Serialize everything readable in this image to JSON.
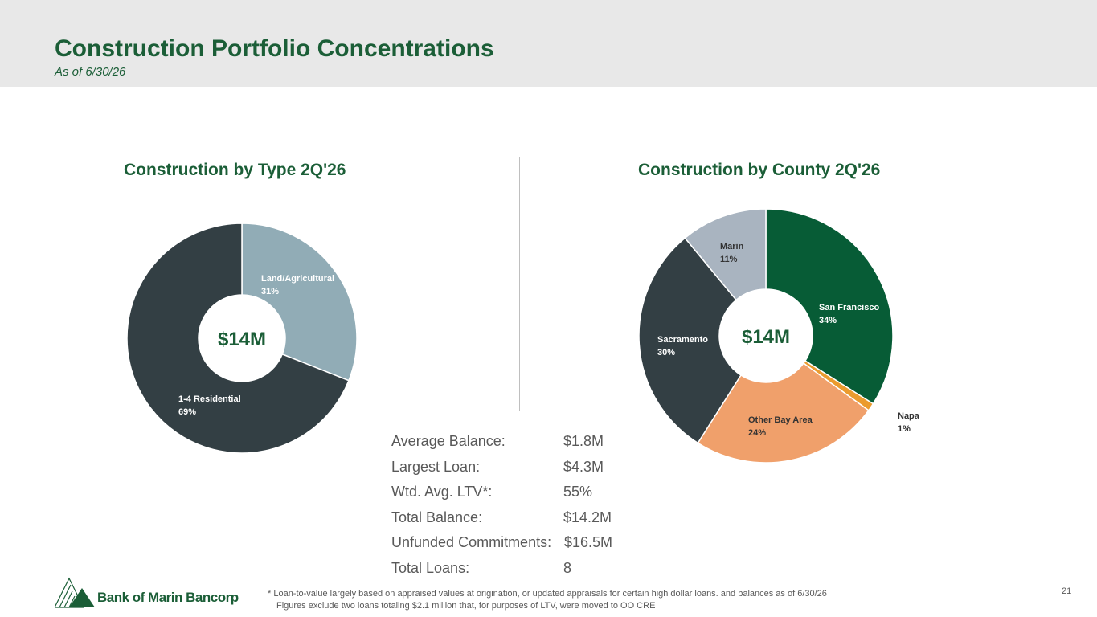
{
  "header": {
    "title": "Construction Portfolio Concentrations",
    "subtitle": "As of 6/30/26"
  },
  "colors": {
    "brand_green": "#1b5e37",
    "land_agricultural": "#91acb6",
    "residential": "#333f44",
    "san_francisco": "#075c36",
    "napa": "#eb9b2e",
    "other_bay_area": "#f0a06b",
    "sacramento": "#333f44",
    "marin": "#a9b4c0"
  },
  "chart_data": [
    {
      "type": "pie",
      "title": "Construction by Type 2Q'26",
      "center_label": "$14M",
      "slices": [
        {
          "label": "Land/Agricultural",
          "value": 31,
          "value_label": "31%",
          "color": "#91acb6",
          "text_color": "#ffffff"
        },
        {
          "label": "1-4 Residential",
          "value": 69,
          "value_label": "69%",
          "color": "#333f44",
          "text_color": "#ffffff"
        }
      ]
    },
    {
      "type": "pie",
      "title": "Construction by County 2Q'26",
      "center_label": "$14M",
      "slices": [
        {
          "label": "San Francisco",
          "value": 34,
          "value_label": "34%",
          "color": "#075c36",
          "text_color": "#ffffff"
        },
        {
          "label": "Napa",
          "value": 1,
          "value_label": "1%",
          "color": "#eb9b2e",
          "text_color": "#333333"
        },
        {
          "label": "Other Bay Area",
          "value": 24,
          "value_label": "24%",
          "color": "#f0a06b",
          "text_color": "#333333"
        },
        {
          "label": "Sacramento",
          "value": 30,
          "value_label": "30%",
          "color": "#333f44",
          "text_color": "#ffffff"
        },
        {
          "label": "Marin",
          "value": 11,
          "value_label": "11%",
          "color": "#a9b4c0",
          "text_color": "#333333"
        }
      ]
    }
  ],
  "stats": [
    {
      "label": "Average Balance:",
      "value": "$1.8M"
    },
    {
      "label": "Largest Loan:",
      "value": "$4.3M"
    },
    {
      "label": "Wtd. Avg. LTV*:",
      "value": "55%"
    },
    {
      "label": "Total Balance:",
      "value": "$14.2M"
    },
    {
      "label": "Unfunded Commitments:",
      "value": "$16.5M"
    },
    {
      "label": "Total Loans:",
      "value": "8"
    }
  ],
  "footer": {
    "logo_text": "Bank of Marin Bancorp",
    "footnote_line1": "*  Loan-to-value largely based on appraised values at origination, or updated appraisals for certain high dollar loans. and balances as of 6/30/26",
    "footnote_line2": "Figures exclude two loans totaling $2.1 million that, for purposes of LTV, were moved to OO CRE",
    "page_number": "21"
  }
}
